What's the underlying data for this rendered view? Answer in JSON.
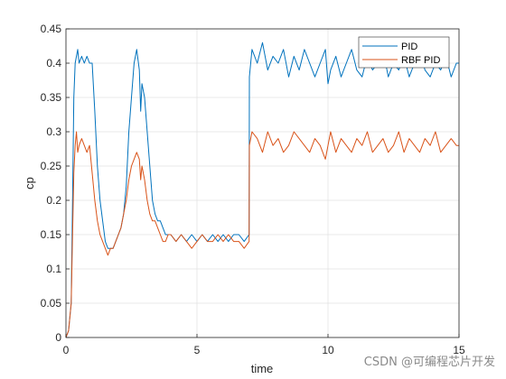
{
  "chart_data": {
    "type": "line",
    "title": "",
    "xlabel": "time",
    "ylabel": "cp",
    "xlim": [
      0,
      15
    ],
    "ylim": [
      0,
      0.45
    ],
    "x_ticks": [
      "0",
      "5",
      "10",
      "15"
    ],
    "y_ticks": [
      "0",
      "0.05",
      "0.1",
      "0.15",
      "0.2",
      "0.25",
      "0.3",
      "0.35",
      "0.4",
      "0.45"
    ],
    "grid": true,
    "legend_position": "top-right",
    "series": [
      {
        "name": "PID",
        "color": "#0072BD",
        "x": [
          0,
          0.1,
          0.2,
          0.25,
          0.3,
          0.35,
          0.4,
          0.45,
          0.5,
          0.6,
          0.7,
          0.8,
          0.9,
          1.0,
          1.1,
          1.2,
          1.3,
          1.4,
          1.5,
          1.6,
          1.7,
          1.8,
          1.9,
          2.0,
          2.1,
          2.2,
          2.3,
          2.4,
          2.5,
          2.6,
          2.7,
          2.8,
          2.85,
          2.9,
          3.0,
          3.1,
          3.2,
          3.3,
          3.4,
          3.5,
          3.6,
          3.7,
          3.8,
          3.9,
          4.0,
          4.2,
          4.4,
          4.6,
          4.8,
          5.0,
          5.2,
          5.4,
          5.6,
          5.8,
          6.0,
          6.2,
          6.4,
          6.6,
          6.8,
          6.99,
          7.0,
          7.1,
          7.3,
          7.5,
          7.7,
          7.9,
          8.1,
          8.3,
          8.5,
          8.7,
          8.9,
          9.1,
          9.3,
          9.5,
          9.7,
          9.9,
          10.0,
          10.1,
          10.3,
          10.5,
          10.7,
          10.9,
          11.1,
          11.3,
          11.5,
          11.7,
          11.9,
          12.1,
          12.3,
          12.5,
          12.7,
          12.9,
          13.1,
          13.3,
          13.5,
          13.7,
          13.9,
          14.1,
          14.3,
          14.5,
          14.7,
          14.9,
          15.0
        ],
        "y": [
          0.0,
          0.01,
          0.05,
          0.2,
          0.35,
          0.4,
          0.41,
          0.42,
          0.4,
          0.41,
          0.4,
          0.41,
          0.4,
          0.4,
          0.33,
          0.25,
          0.2,
          0.17,
          0.14,
          0.13,
          0.13,
          0.13,
          0.14,
          0.15,
          0.16,
          0.18,
          0.22,
          0.3,
          0.35,
          0.4,
          0.42,
          0.39,
          0.33,
          0.37,
          0.35,
          0.3,
          0.25,
          0.2,
          0.18,
          0.17,
          0.17,
          0.16,
          0.15,
          0.15,
          0.15,
          0.14,
          0.15,
          0.14,
          0.15,
          0.14,
          0.15,
          0.14,
          0.15,
          0.14,
          0.15,
          0.14,
          0.15,
          0.15,
          0.14,
          0.15,
          0.38,
          0.42,
          0.4,
          0.43,
          0.39,
          0.41,
          0.4,
          0.42,
          0.38,
          0.41,
          0.39,
          0.42,
          0.4,
          0.38,
          0.4,
          0.42,
          0.37,
          0.39,
          0.41,
          0.38,
          0.4,
          0.42,
          0.39,
          0.38,
          0.41,
          0.39,
          0.4,
          0.42,
          0.38,
          0.4,
          0.39,
          0.41,
          0.38,
          0.4,
          0.42,
          0.39,
          0.38,
          0.4,
          0.39,
          0.41,
          0.38,
          0.4,
          0.4
        ]
      },
      {
        "name": "RBF PID",
        "color": "#D95319",
        "x": [
          0,
          0.1,
          0.2,
          0.25,
          0.3,
          0.35,
          0.4,
          0.45,
          0.5,
          0.6,
          0.7,
          0.8,
          0.9,
          1.0,
          1.1,
          1.2,
          1.3,
          1.4,
          1.5,
          1.6,
          1.7,
          1.8,
          1.9,
          2.0,
          2.1,
          2.2,
          2.3,
          2.4,
          2.5,
          2.6,
          2.7,
          2.8,
          2.85,
          2.9,
          3.0,
          3.1,
          3.2,
          3.3,
          3.4,
          3.5,
          3.6,
          3.7,
          3.8,
          3.9,
          4.0,
          4.2,
          4.4,
          4.6,
          4.8,
          5.0,
          5.2,
          5.4,
          5.6,
          5.8,
          6.0,
          6.2,
          6.4,
          6.6,
          6.8,
          6.99,
          7.0,
          7.1,
          7.3,
          7.5,
          7.7,
          7.9,
          8.1,
          8.3,
          8.5,
          8.7,
          8.9,
          9.1,
          9.3,
          9.5,
          9.7,
          9.9,
          10.0,
          10.1,
          10.3,
          10.5,
          10.7,
          10.9,
          11.1,
          11.3,
          11.5,
          11.7,
          11.9,
          12.1,
          12.3,
          12.5,
          12.7,
          12.9,
          13.1,
          13.3,
          13.5,
          13.7,
          13.9,
          14.1,
          14.3,
          14.5,
          14.7,
          14.9,
          15.0
        ],
        "y": [
          0.0,
          0.01,
          0.05,
          0.15,
          0.24,
          0.28,
          0.3,
          0.27,
          0.28,
          0.29,
          0.28,
          0.27,
          0.28,
          0.24,
          0.2,
          0.17,
          0.15,
          0.14,
          0.13,
          0.12,
          0.13,
          0.13,
          0.14,
          0.15,
          0.16,
          0.18,
          0.2,
          0.23,
          0.25,
          0.26,
          0.27,
          0.26,
          0.23,
          0.25,
          0.23,
          0.2,
          0.18,
          0.17,
          0.17,
          0.16,
          0.15,
          0.14,
          0.14,
          0.15,
          0.15,
          0.14,
          0.15,
          0.14,
          0.13,
          0.14,
          0.15,
          0.14,
          0.14,
          0.15,
          0.14,
          0.15,
          0.14,
          0.14,
          0.13,
          0.14,
          0.28,
          0.3,
          0.29,
          0.27,
          0.3,
          0.28,
          0.29,
          0.27,
          0.28,
          0.3,
          0.29,
          0.28,
          0.27,
          0.29,
          0.28,
          0.26,
          0.28,
          0.3,
          0.27,
          0.29,
          0.28,
          0.27,
          0.29,
          0.28,
          0.3,
          0.27,
          0.28,
          0.29,
          0.27,
          0.28,
          0.3,
          0.27,
          0.29,
          0.28,
          0.27,
          0.29,
          0.28,
          0.3,
          0.27,
          0.28,
          0.29,
          0.28,
          0.28
        ]
      }
    ]
  },
  "watermark": "CSDN @可编程芯片开发"
}
